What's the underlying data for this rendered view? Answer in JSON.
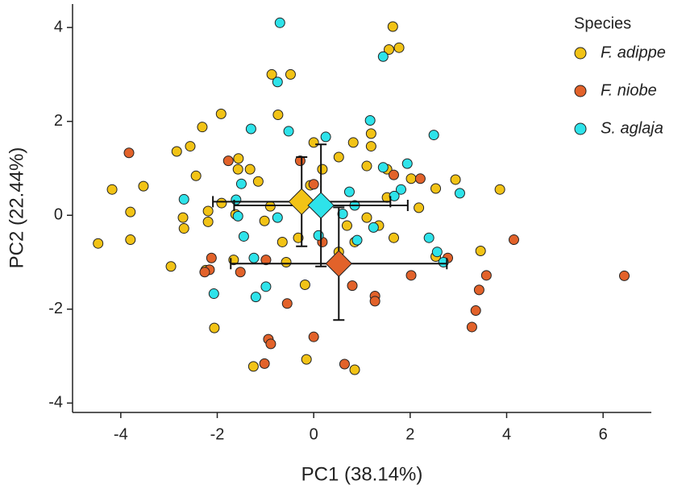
{
  "chart_data": {
    "type": "scatter",
    "xlabel": "PC1 (38.14%)",
    "ylabel": "PC2 (22.44%)",
    "legend_title": "Species",
    "legend": "top-right",
    "xlim": [
      -5,
      7
    ],
    "ylim": [
      -4.2,
      4.5
    ],
    "xticks": [
      -4,
      -2,
      0,
      2,
      4,
      6
    ],
    "yticks": [
      -4,
      -2,
      0,
      2,
      4
    ],
    "series": [
      {
        "name": "F. adippe",
        "color": "#f2c316",
        "x": [
          1.64,
          1.77,
          1.56,
          -0.87,
          -0.48,
          -1.92,
          -0.74,
          -2.31,
          -2.56,
          -2.84,
          -1.56,
          0,
          -2.44,
          -1.57,
          -1.32,
          -1.15,
          -4.18,
          -3.53,
          -3.8,
          -3.8,
          -4.47,
          1.19,
          1.19,
          0.82,
          0.52,
          1.1,
          1.52,
          2.02,
          2.53,
          2.94,
          3.86,
          2.18,
          1.52,
          1.66,
          1.35,
          1.1,
          0.69,
          0.85,
          0.52,
          0.18,
          -0.07,
          -0.32,
          -0.65,
          -0.57,
          -0.18,
          -0.15,
          0.85,
          -1.25,
          -2.06,
          -2.96,
          -2.69,
          -2.71,
          -2.19,
          -2.19,
          -1.91,
          -1.62,
          -1.66,
          -2.24,
          -1.02,
          -0.9,
          3.46,
          2.53
        ],
        "y": [
          4.02,
          3.57,
          3.53,
          3.0,
          3.0,
          2.16,
          2.14,
          1.88,
          1.47,
          1.36,
          1.21,
          1.55,
          0.84,
          0.98,
          0.98,
          0.72,
          0.55,
          0.62,
          0.07,
          -0.52,
          -0.6,
          1.74,
          1.47,
          1.55,
          1.24,
          1.05,
          0.98,
          0.78,
          0.57,
          0.76,
          0.55,
          0.16,
          0.38,
          -0.48,
          -0.22,
          -0.05,
          -0.22,
          -0.57,
          -0.78,
          0.98,
          0.64,
          -0.48,
          -0.57,
          -1.0,
          -1.48,
          -3.07,
          -3.29,
          -3.22,
          -2.4,
          -1.09,
          -0.28,
          -0.05,
          -0.14,
          0.09,
          0.26,
          0.02,
          -0.95,
          -1.17,
          -0.12,
          0.19,
          -0.76,
          -0.88
        ],
        "mean_x": -0.25,
        "mean_y": 0.29,
        "err_x": 1.84,
        "err_y": 0.95
      },
      {
        "name": "F. niobe",
        "color": "#e2622a",
        "x": [
          -3.83,
          -1.77,
          -0.28,
          0,
          1.66,
          2.21,
          -2.12,
          -2.16,
          -2.26,
          -1.52,
          -0.99,
          -0.55,
          -0.94,
          -0.89,
          -1.02,
          0,
          0.64,
          0.8,
          1.27,
          1.27,
          2.02,
          2.78,
          4.15,
          3.58,
          3.43,
          3.36,
          3.28,
          6.44,
          0.18
        ],
        "y": [
          1.33,
          1.16,
          1.16,
          0.66,
          0.86,
          0.78,
          -0.91,
          -1.16,
          -1.21,
          -1.21,
          -0.95,
          -1.88,
          -2.64,
          -2.74,
          -3.16,
          -2.59,
          -3.17,
          -1.5,
          -1.72,
          -1.83,
          -1.28,
          -0.91,
          -0.52,
          -1.28,
          -1.59,
          -2.03,
          -2.38,
          -1.29,
          -0.57
        ],
        "mean_x": 0.52,
        "mean_y": -1.03,
        "err_x": 2.24,
        "err_y": 1.2
      },
      {
        "name": "S. aglaja",
        "color": "#2ee3ea",
        "x": [
          -0.7,
          1.44,
          -0.75,
          1.17,
          0.25,
          -0.52,
          -1.3,
          2.49,
          1.44,
          1.94,
          1.81,
          1.67,
          3.03,
          -1.5,
          -2.69,
          -1.57,
          -1.45,
          -1.24,
          -0.99,
          -1.2,
          -2.07,
          -0.75,
          0.74,
          0.85,
          1.24,
          0.9,
          0.1,
          2.39,
          2.56,
          2.69,
          -1.61,
          0.6
        ],
        "y": [
          4.1,
          3.38,
          2.84,
          2.02,
          1.67,
          1.79,
          1.84,
          1.71,
          1.02,
          1.1,
          0.55,
          0.41,
          0.47,
          0.67,
          0.34,
          -0.02,
          -0.45,
          -0.91,
          -1.52,
          -1.74,
          -1.67,
          -0.05,
          0.5,
          0.21,
          -0.26,
          -0.53,
          -0.43,
          -0.48,
          -0.78,
          -1.0,
          0.33,
          0.03
        ],
        "mean_x": 0.15,
        "mean_y": 0.21,
        "err_x": 1.8,
        "err_y": 1.3
      }
    ]
  }
}
